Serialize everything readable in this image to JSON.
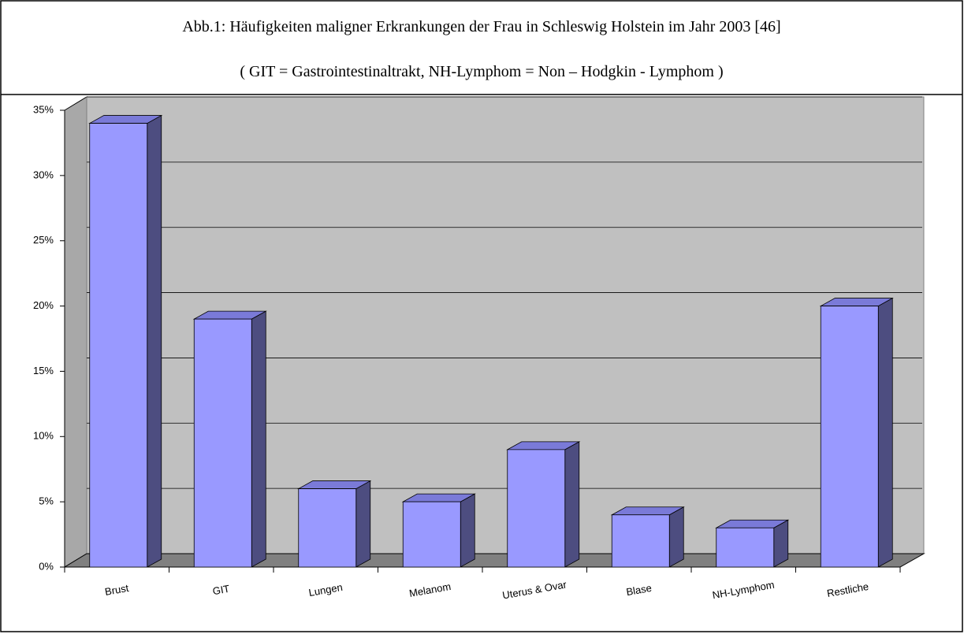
{
  "chart_data": {
    "type": "bar3d",
    "title": "Abb.1: Häufigkeiten maligner Erkrankungen der Frau in Schleswig Holstein im Jahr 2003 [46]",
    "subtitle": "( GIT = Gastrointestinaltrakt, NH-Lymphom = Non – Hodgkin - Lymphom )",
    "categories": [
      "Brust",
      "GIT",
      "Lungen",
      "Melanom",
      "Uterus & Ovar",
      "Blase",
      "NH-Lymphom",
      "Restliche"
    ],
    "values": [
      34,
      19,
      6,
      5,
      9,
      4,
      3,
      20
    ],
    "color": "#9999ff",
    "ylim": [
      0,
      35
    ],
    "yticks": [
      {
        "value": 0,
        "label": "0%"
      },
      {
        "value": 5,
        "label": "5%"
      },
      {
        "value": 10,
        "label": "10%"
      },
      {
        "value": 15,
        "label": "15%"
      },
      {
        "value": 20,
        "label": "20%"
      },
      {
        "value": 25,
        "label": "25%"
      },
      {
        "value": 30,
        "label": "30%"
      },
      {
        "value": 35,
        "label": "35%"
      }
    ],
    "grid": true
  }
}
